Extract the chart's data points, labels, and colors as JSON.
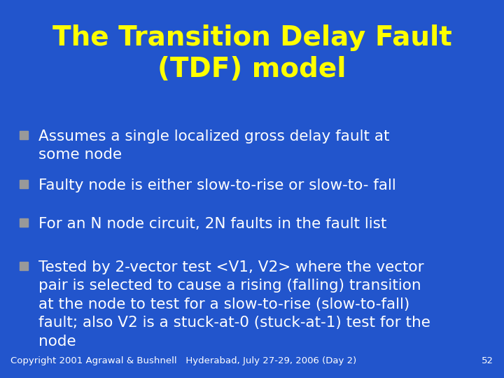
{
  "background_color": "#2255CC",
  "title_line1": "The Transition Delay Fault",
  "title_line2": "(TDF) model",
  "title_color": "#FFFF00",
  "title_fontsize": 28,
  "title_fontweight": "bold",
  "title_font": "DejaVu Sans",
  "bullet_color": "#FFFFFF",
  "bullet_fontsize": 15.5,
  "bullet_marker_color": "#999999",
  "bullets": [
    "Assumes a single localized gross delay fault at\nsome node",
    "Faulty node is either slow-to-rise or slow-to- fall",
    "For an N node circuit, 2N faults in the fault list",
    "Tested by 2-vector test <V1, V2> where the vector\npair is selected to cause a rising (falling) transition\nat the node to test for a slow-to-rise (slow-to-fall)\nfault; also V2 is a stuck-at-0 (stuck-at-1) test for the\nnode"
  ],
  "footer_text": "Copyright 2001 Agrawal & Bushnell   Hyderabad, July 27-29, 2006 (Day 2)",
  "footer_page": "52",
  "footer_color": "#FFFFFF",
  "footer_fontsize": 9.5
}
